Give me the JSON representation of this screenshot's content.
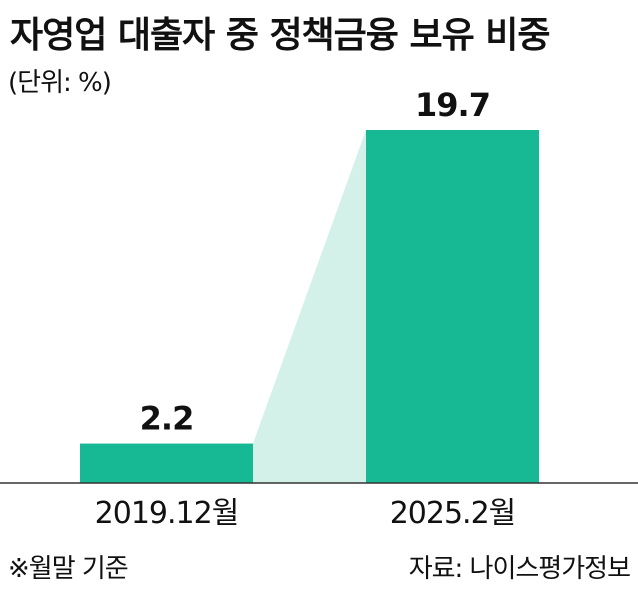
{
  "title": "자영업 대출자 중 정책금융 보유 비중",
  "unit_label": "(단위: %)",
  "footnote": "※월말 기준",
  "source": "자료: 나이스평가정보",
  "colors": {
    "bar": "#17b894",
    "connector": "#d3f0e9",
    "axis": "#333333",
    "text": "#111111"
  },
  "chart_data": {
    "type": "bar",
    "title": "자영업 대출자 중 정책금융 보유 비중",
    "xlabel": "",
    "ylabel": "",
    "categories": [
      "2019.12월",
      "2025.2월"
    ],
    "values": [
      2.2,
      19.7
    ],
    "value_labels": [
      "2.2",
      "19.7"
    ],
    "ylim": [
      0,
      21
    ],
    "grid": false,
    "legend": "none"
  }
}
